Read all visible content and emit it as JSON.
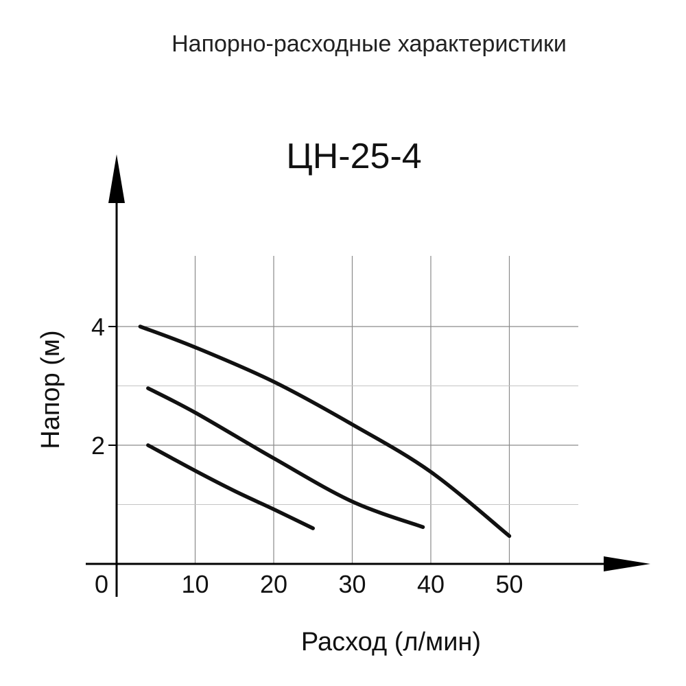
{
  "header": {
    "text": "Напорно-расходные характеристики"
  },
  "chart_data": {
    "type": "line",
    "title": "ЦН-25-4",
    "xlabel": "Расход (л/мин)",
    "ylabel": "Напор (м)",
    "xlim": [
      0,
      60
    ],
    "ylim": [
      0,
      5
    ],
    "x_ticks": [
      "10",
      "20",
      "30",
      "40",
      "50"
    ],
    "origin_label": "0",
    "y_ticks": [
      "2",
      "4"
    ],
    "grid": true,
    "grid_x_values": [
      10,
      20,
      30,
      40,
      50
    ],
    "grid_y_major": [
      2,
      4
    ],
    "grid_y_minor": [
      1,
      3
    ],
    "line_color": "#111111",
    "series": [
      {
        "points": [
          [
            4.0,
            2.0
          ],
          [
            10,
            1.57
          ],
          [
            15,
            1.23
          ],
          [
            20,
            0.92
          ],
          [
            25,
            0.6
          ]
        ]
      },
      {
        "points": [
          [
            4.0,
            2.96
          ],
          [
            10,
            2.55
          ],
          [
            20,
            1.78
          ],
          [
            30,
            1.05
          ],
          [
            39,
            0.62
          ]
        ]
      },
      {
        "points": [
          [
            3.0,
            4.0
          ],
          [
            10,
            3.65
          ],
          [
            20,
            3.07
          ],
          [
            30,
            2.35
          ],
          [
            40,
            1.55
          ],
          [
            50,
            0.47
          ]
        ]
      }
    ]
  }
}
